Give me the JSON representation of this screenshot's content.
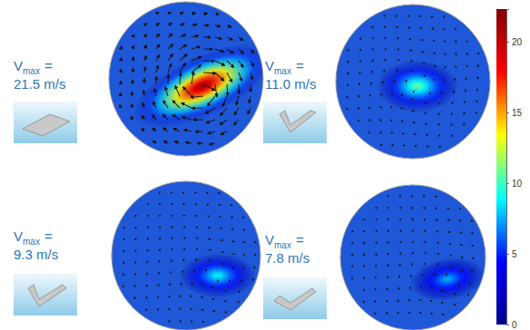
{
  "chart_data": {
    "type": "vector_field",
    "colorbar": {
      "range": [
        0,
        22.3
      ],
      "ticks": [
        0,
        5,
        10,
        15,
        20
      ]
    },
    "panels": [
      {
        "label": {
          "symbol": "V",
          "subscript": "max",
          "equals": "=",
          "value": "21.5 m/s"
        },
        "vmax": 21.5
      },
      {
        "label": {
          "symbol": "V",
          "subscript": "max",
          "equals": "=",
          "value": "11.0 m/s"
        },
        "vmax": 11.0
      },
      {
        "label": {
          "symbol": "V",
          "subscript": "max",
          "equals": "=",
          "value": "9.3 m/s"
        },
        "vmax": 9.3
      },
      {
        "label": {
          "symbol": "V",
          "subscript": "max",
          "equals": "=",
          "value": "7.8 m/s"
        },
        "vmax": 7.8
      }
    ]
  }
}
